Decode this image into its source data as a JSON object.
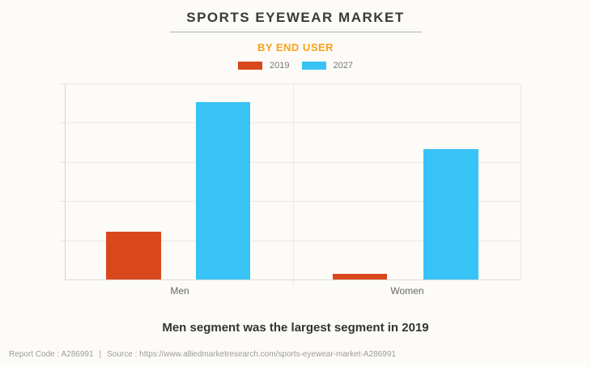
{
  "header": {
    "title": "SPORTS EYEWEAR MARKET",
    "subtitle": "BY END USER"
  },
  "chart_data": {
    "type": "bar",
    "title": "SPORTS EYEWEAR MARKET",
    "subtitle": "BY END USER",
    "categories": [
      "Men",
      "Women"
    ],
    "series": [
      {
        "name": "2019",
        "color": "#d8481c",
        "values": [
          24.4,
          2.9
        ]
      },
      {
        "name": "2027",
        "color": "#38c3f7",
        "values": [
          90.5,
          66.5
        ]
      }
    ],
    "xlabel": "",
    "ylabel": "",
    "ylim": [
      0,
      100
    ],
    "y_axis_tick_labels_visible": false,
    "values_note": "no numeric labels shown in chart; values estimated as percent of plot height",
    "grid": true,
    "legend_position": "top-center"
  },
  "legend": {
    "items": [
      {
        "label": "2019",
        "color": "#d8481c"
      },
      {
        "label": "2027",
        "color": "#38c3f7"
      }
    ]
  },
  "footnote": "Men segment was the largest segment in 2019",
  "footer": {
    "report_code": "Report Code : A286991",
    "separator": "|",
    "source": "Source : https://www.alliedmarketresearch.com/sports-eyewear-market-A286991"
  },
  "colors": {
    "background": "#fdfbf7",
    "title": "#3a3a3a",
    "subtitle": "#f9a11b",
    "series_2019": "#d8481c",
    "series_2027": "#38c3f7",
    "gridline": "#ebe9e5",
    "footnote": "#333333",
    "footer_text": "#9b9b9b"
  }
}
